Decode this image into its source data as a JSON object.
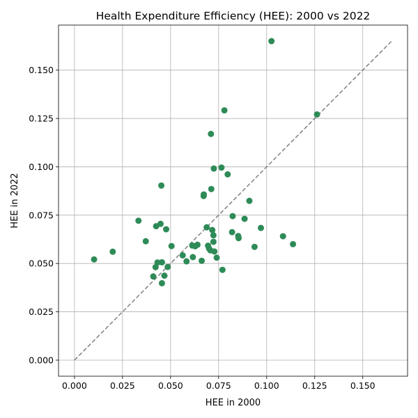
{
  "chart_data": {
    "type": "scatter",
    "title": "Health Expenditure Efficiency (HEE): 2000 vs 2022",
    "xlabel": "HEE in 2000",
    "ylabel": "HEE in 2022",
    "xlim": [
      -0.0083,
      0.1733
    ],
    "ylim": [
      -0.0083,
      0.1733
    ],
    "xticks": [
      "0.000",
      "0.025",
      "0.050",
      "0.075",
      "0.100",
      "0.125",
      "0.150"
    ],
    "yticks": [
      "0.000",
      "0.025",
      "0.050",
      "0.075",
      "0.100",
      "0.125",
      "0.150"
    ],
    "grid": true,
    "point_color": "#2e8b57",
    "reference_line": {
      "from": [
        0,
        0
      ],
      "to": [
        0.165,
        0.165
      ],
      "style": "dashed",
      "color": "#808080"
    },
    "points": [
      [
        0.0102,
        0.0521
      ],
      [
        0.0199,
        0.0561
      ],
      [
        0.0333,
        0.0721
      ],
      [
        0.0371,
        0.0615
      ],
      [
        0.041,
        0.0433
      ],
      [
        0.0422,
        0.0481
      ],
      [
        0.0425,
        0.0693
      ],
      [
        0.0432,
        0.0505
      ],
      [
        0.0448,
        0.0705
      ],
      [
        0.0452,
        0.0903
      ],
      [
        0.0455,
        0.0398
      ],
      [
        0.0455,
        0.0506
      ],
      [
        0.0468,
        0.0437
      ],
      [
        0.0477,
        0.0677
      ],
      [
        0.0485,
        0.0482
      ],
      [
        0.0505,
        0.059
      ],
      [
        0.0563,
        0.0542
      ],
      [
        0.0583,
        0.0511
      ],
      [
        0.0613,
        0.0593
      ],
      [
        0.0616,
        0.0533
      ],
      [
        0.0628,
        0.0589
      ],
      [
        0.064,
        0.0597
      ],
      [
        0.0662,
        0.0514
      ],
      [
        0.0672,
        0.0849
      ],
      [
        0.0673,
        0.0857
      ],
      [
        0.0688,
        0.0687
      ],
      [
        0.0695,
        0.0592
      ],
      [
        0.07,
        0.0578
      ],
      [
        0.0707,
        0.0568
      ],
      [
        0.071,
        0.117
      ],
      [
        0.0712,
        0.0885
      ],
      [
        0.0717,
        0.0673
      ],
      [
        0.0723,
        0.0646
      ],
      [
        0.0723,
        0.0612
      ],
      [
        0.0725,
        0.0991
      ],
      [
        0.0728,
        0.0562
      ],
      [
        0.074,
        0.053
      ],
      [
        0.0765,
        0.0996
      ],
      [
        0.077,
        0.0467
      ],
      [
        0.078,
        0.1292
      ],
      [
        0.0797,
        0.0961
      ],
      [
        0.082,
        0.0662
      ],
      [
        0.0823,
        0.0745
      ],
      [
        0.0852,
        0.0642
      ],
      [
        0.0854,
        0.0631
      ],
      [
        0.0885,
        0.0731
      ],
      [
        0.091,
        0.0824
      ],
      [
        0.0937,
        0.0586
      ],
      [
        0.097,
        0.0684
      ],
      [
        0.1025,
        0.165
      ],
      [
        0.1085,
        0.0641
      ],
      [
        0.1137,
        0.06
      ],
      [
        0.1262,
        0.1271
      ]
    ]
  }
}
